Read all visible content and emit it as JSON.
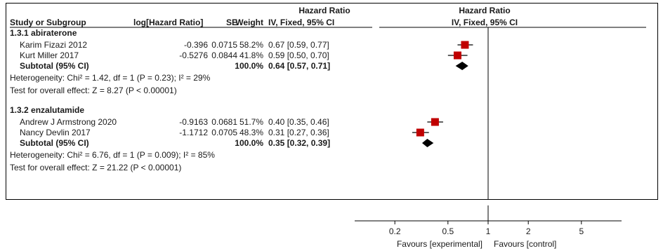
{
  "chart_data": {
    "type": "forest",
    "header": {
      "study": "Study or Subgroup",
      "log_hr": "log[Hazard Ratio]",
      "se": "SE",
      "weight": "Weight",
      "measure": "Hazard Ratio",
      "method": "IV, Fixed, 95% CI",
      "plot_measure": "Hazard Ratio",
      "plot_method": "IV, Fixed, 95% CI"
    },
    "subgroups": [
      {
        "title": "1.3.1 abiraterone",
        "studies": [
          {
            "name": "Karim Fizazi 2012",
            "log_hr": "-0.396",
            "se": "0.0715",
            "weight": "58.2%",
            "ci_text": "0.67 [0.59, 0.77]",
            "hr": 0.67,
            "lo": 0.59,
            "hi": 0.77
          },
          {
            "name": "Kurt Miller 2017",
            "log_hr": "-0.5276",
            "se": "0.0844",
            "weight": "41.8%",
            "ci_text": "0.59 [0.50, 0.70]",
            "hr": 0.59,
            "lo": 0.5,
            "hi": 0.7
          }
        ],
        "subtotal": {
          "label": "Subtotal (95% CI)",
          "weight": "100.0%",
          "ci_text": "0.64 [0.57, 0.71]",
          "hr": 0.64,
          "lo": 0.57,
          "hi": 0.71
        },
        "heterogeneity": "Heterogeneity: Chi² = 1.42, df = 1 (P = 0.23); I² = 29%",
        "overall": "Test for overall effect: Z = 8.27 (P < 0.00001)"
      },
      {
        "title": "1.3.2 enzalutamide",
        "studies": [
          {
            "name": "Andrew J Armstrong 2020",
            "log_hr": "-0.9163",
            "se": "0.0681",
            "weight": "51.7%",
            "ci_text": "0.40 [0.35, 0.46]",
            "hr": 0.4,
            "lo": 0.35,
            "hi": 0.46
          },
          {
            "name": "Nancy Devlin 2017",
            "log_hr": "-1.1712",
            "se": "0.0705",
            "weight": "48.3%",
            "ci_text": "0.31 [0.27, 0.36]",
            "hr": 0.31,
            "lo": 0.27,
            "hi": 0.36
          }
        ],
        "subtotal": {
          "label": "Subtotal (95% CI)",
          "weight": "100.0%",
          "ci_text": "0.35 [0.32, 0.39]",
          "hr": 0.35,
          "lo": 0.32,
          "hi": 0.39
        },
        "heterogeneity": "Heterogeneity: Chi² = 6.76, df = 1 (P = 0.009); I² = 85%",
        "overall": "Test for overall effect: Z = 21.22 (P < 0.00001)"
      }
    ],
    "x_axis": {
      "scale": "log",
      "ticks": [
        0.2,
        0.5,
        1,
        2,
        5
      ],
      "tick_labels": [
        "0.2",
        "0.5",
        "1",
        "2",
        "5"
      ],
      "range": [
        0.1,
        10
      ],
      "favours_left": "Favours [experimental]",
      "favours_right": "Favours [control]"
    },
    "colors": {
      "study_marker": "#c00000",
      "subtotal_diamond": "#000000",
      "lines": "#000000"
    }
  }
}
